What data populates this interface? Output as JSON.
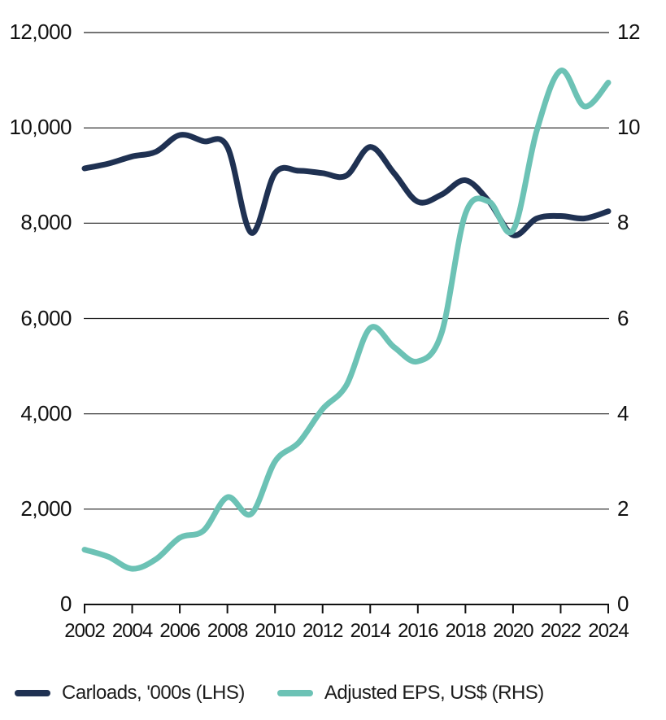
{
  "chart_data": {
    "type": "line",
    "title": "",
    "x": [
      2002,
      2003,
      2004,
      2005,
      2006,
      2007,
      2008,
      2009,
      2010,
      2011,
      2012,
      2013,
      2014,
      2015,
      2016,
      2017,
      2018,
      2019,
      2020,
      2021,
      2022,
      2023,
      2024
    ],
    "series": [
      {
        "name": "Carloads, '000s (LHS)",
        "axis": "left",
        "color": "#1f3152",
        "values": [
          9150,
          9250,
          9400,
          9500,
          9850,
          9720,
          9600,
          7800,
          9050,
          9100,
          9050,
          9000,
          9600,
          9050,
          8450,
          8600,
          8900,
          8450,
          7750,
          8100,
          8150,
          8100,
          8250
        ]
      },
      {
        "name": "Adjusted EPS, US$ (RHS)",
        "axis": "right",
        "color": "#6cc2b5",
        "values": [
          1.15,
          1.0,
          0.75,
          0.95,
          1.4,
          1.55,
          2.25,
          1.9,
          3.0,
          3.4,
          4.1,
          4.6,
          5.8,
          5.4,
          5.1,
          5.7,
          8.2,
          8.45,
          7.85,
          9.95,
          11.2,
          10.45,
          10.95
        ]
      }
    ],
    "left_axis": {
      "range": [
        0,
        12000
      ],
      "tick_labels": [
        "12,000",
        "10,000",
        "8,000",
        "6,000",
        "4,000",
        "2,000",
        "0"
      ]
    },
    "right_axis": {
      "range": [
        0,
        12
      ],
      "tick_labels": [
        "12",
        "10",
        "8",
        "6",
        "4",
        "2",
        "0"
      ]
    },
    "x_axis": {
      "tick_labels": [
        "2002",
        "2004",
        "2006",
        "2008",
        "2010",
        "2012",
        "2014",
        "2016",
        "2018",
        "2020",
        "2022",
        "2024"
      ]
    },
    "grid": true,
    "legend_position": "bottom",
    "grid_color": "#222222",
    "axis_color": "#111111"
  }
}
